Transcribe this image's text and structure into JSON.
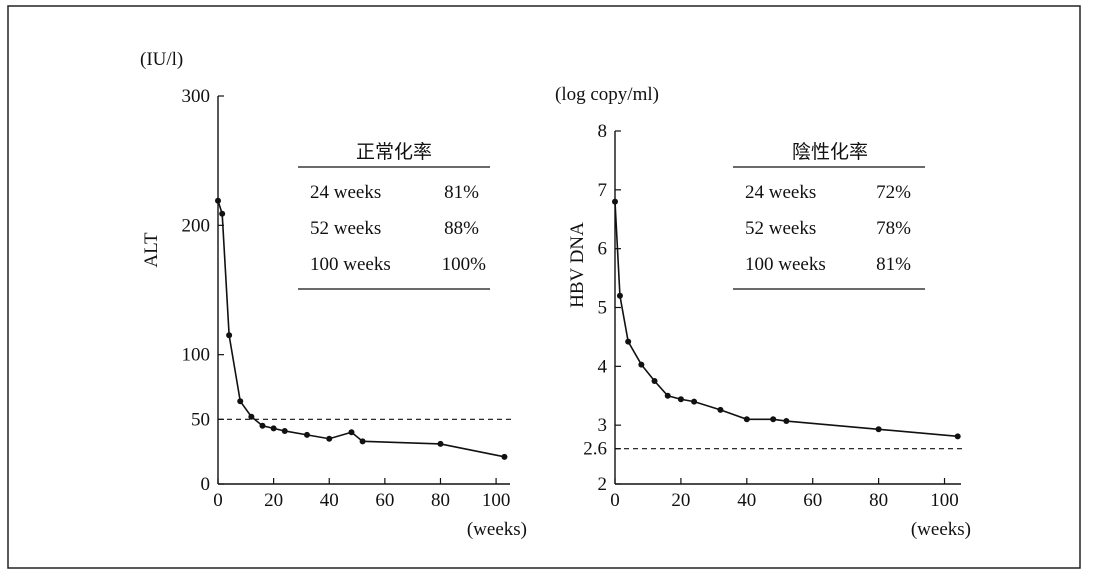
{
  "chart_data": [
    {
      "type": "line",
      "unit": "(IU/l)",
      "ylabel": "ALT",
      "xlabel": "(weeks)",
      "xlim": [
        0,
        105
      ],
      "ylim": [
        0,
        300
      ],
      "yticks": [
        0,
        50,
        100,
        200,
        300
      ],
      "xticks": [
        0,
        20,
        40,
        60,
        80,
        100
      ],
      "reference_line": 50,
      "series": [
        {
          "x": [
            0,
            1.5,
            4,
            8,
            12,
            16,
            20,
            24,
            32,
            40,
            48,
            52,
            80,
            103
          ],
          "y": [
            219,
            209,
            115,
            64,
            52,
            45,
            43,
            41,
            38,
            35,
            40,
            33,
            31,
            21
          ]
        }
      ],
      "table": {
        "header": "正常化率",
        "rows": [
          {
            "label": "24 weeks",
            "value": "81%"
          },
          {
            "label": "52 weeks",
            "value": "88%"
          },
          {
            "label": "100 weeks",
            "value": "100%"
          }
        ]
      }
    },
    {
      "type": "line",
      "unit": "(log copy/ml)",
      "ylabel": "HBV DNA",
      "xlabel": "(weeks)",
      "xlim": [
        0,
        105
      ],
      "ylim": [
        2,
        8
      ],
      "yticks": [
        2,
        2.6,
        3,
        4,
        5,
        6,
        7,
        8
      ],
      "xticks": [
        0,
        20,
        40,
        60,
        80,
        100
      ],
      "reference_line": 2.6,
      "series": [
        {
          "x": [
            0,
            1.5,
            4,
            8,
            12,
            16,
            20,
            24,
            32,
            40,
            48,
            52,
            80,
            104
          ],
          "y": [
            6.8,
            5.2,
            4.42,
            4.03,
            3.75,
            3.5,
            3.44,
            3.4,
            3.26,
            3.1,
            3.1,
            3.07,
            2.93,
            2.81
          ]
        }
      ],
      "table": {
        "header": "陰性化率",
        "rows": [
          {
            "label": "24 weeks",
            "value": "72%"
          },
          {
            "label": "52 weeks",
            "value": "78%"
          },
          {
            "label": "100 weeks",
            "value": "81%"
          }
        ]
      }
    }
  ]
}
